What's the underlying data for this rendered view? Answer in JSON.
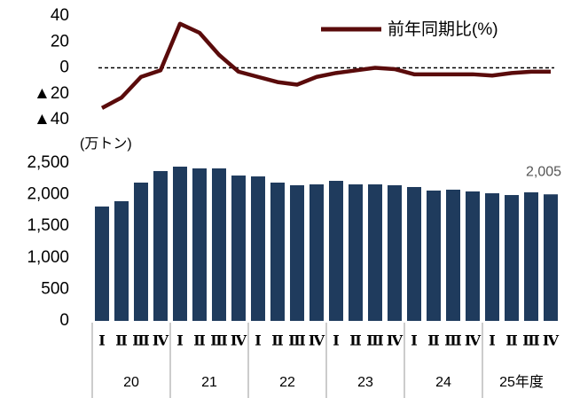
{
  "chart_data": [
    {
      "type": "line",
      "series": [
        {
          "name": "前年同期比(%)",
          "color": "#5a0b0b",
          "values": [
            -31,
            -23,
            -7,
            -2,
            34,
            27,
            10,
            -3,
            -7,
            -11,
            -13,
            -7,
            -4,
            -2,
            0,
            -1,
            -5,
            -5,
            -5,
            -5,
            -6,
            -4,
            -3,
            -3
          ]
        }
      ],
      "ylim": [
        -40,
        40
      ],
      "yticks": [
        40,
        20,
        0,
        {
          "value": -20,
          "label": "▲20"
        },
        {
          "value": -40,
          "label": "▲40"
        }
      ],
      "hline": 0,
      "legend": "top-right"
    },
    {
      "type": "bar",
      "y_label": "(万トン)",
      "categories": [
        "Ⅰ",
        "Ⅱ",
        "Ⅲ",
        "Ⅳ",
        "Ⅰ",
        "Ⅱ",
        "Ⅲ",
        "Ⅳ",
        "Ⅰ",
        "Ⅱ",
        "Ⅲ",
        "Ⅳ",
        "Ⅰ",
        "Ⅱ",
        "Ⅲ",
        "Ⅳ",
        "Ⅰ",
        "Ⅱ",
        "Ⅲ",
        "Ⅳ",
        "Ⅰ",
        "Ⅱ",
        "Ⅲ",
        "Ⅳ"
      ],
      "groups": [
        {
          "label": "20",
          "span": 4
        },
        {
          "label": "21",
          "span": 4
        },
        {
          "label": "22",
          "span": 4
        },
        {
          "label": "23",
          "span": 4
        },
        {
          "label": "24",
          "span": 4
        },
        {
          "label": "25年度",
          "span": 4
        }
      ],
      "values": [
        1812,
        1896,
        2191,
        2374,
        2444,
        2416,
        2416,
        2303,
        2289,
        2191,
        2149,
        2163,
        2219,
        2163,
        2163,
        2149,
        2121,
        2065,
        2079,
        2051,
        2022,
        1994,
        2037,
        2005
      ],
      "value_labels": [
        null,
        null,
        null,
        null,
        null,
        null,
        null,
        null,
        null,
        null,
        null,
        null,
        null,
        null,
        null,
        null,
        null,
        null,
        null,
        null,
        null,
        null,
        null,
        "2,005"
      ],
      "color": "#1f3b5d",
      "ylim": [
        0,
        2500
      ],
      "yticks": [
        0,
        500,
        {
          "value": 1000,
          "label": "1,000"
        },
        {
          "value": 1500,
          "label": "1,500"
        },
        {
          "value": 2000,
          "label": "2,000"
        },
        {
          "value": 2500,
          "label": "2,500"
        }
      ]
    }
  ]
}
